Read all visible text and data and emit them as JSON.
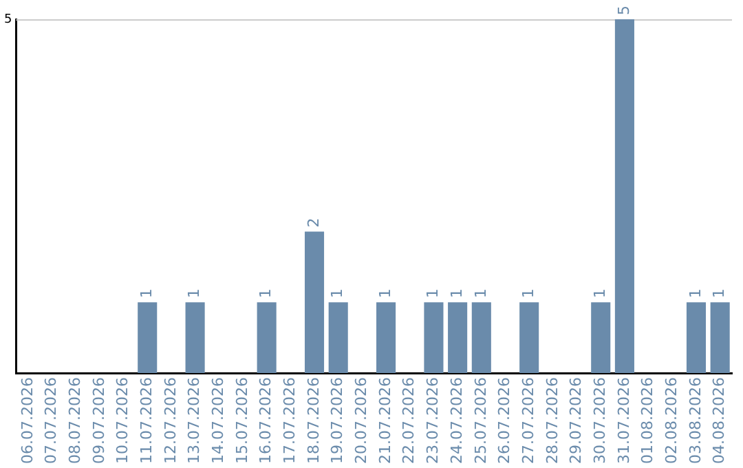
{
  "chart_data": {
    "type": "bar",
    "categories": [
      "06.07.2026",
      "07.07.2026",
      "08.07.2026",
      "09.07.2026",
      "10.07.2026",
      "11.07.2026",
      "12.07.2026",
      "13.07.2026",
      "14.07.2026",
      "15.07.2026",
      "16.07.2026",
      "17.07.2026",
      "18.07.2026",
      "19.07.2026",
      "20.07.2026",
      "21.07.2026",
      "22.07.2026",
      "23.07.2026",
      "24.07.2026",
      "25.07.2026",
      "26.07.2026",
      "27.07.2026",
      "28.07.2026",
      "29.07.2026",
      "30.07.2026",
      "31.07.2026",
      "01.08.2026",
      "02.08.2026",
      "03.08.2026",
      "04.08.2026"
    ],
    "values": [
      null,
      null,
      null,
      null,
      null,
      1,
      null,
      1,
      null,
      null,
      1,
      null,
      2,
      1,
      null,
      1,
      null,
      1,
      1,
      1,
      null,
      1,
      null,
      null,
      1,
      5,
      null,
      null,
      1,
      1
    ],
    "color": "#6a8bab",
    "ylim": [
      0,
      5
    ],
    "yticks": [
      5
    ],
    "data_labels": true,
    "legend": false
  }
}
